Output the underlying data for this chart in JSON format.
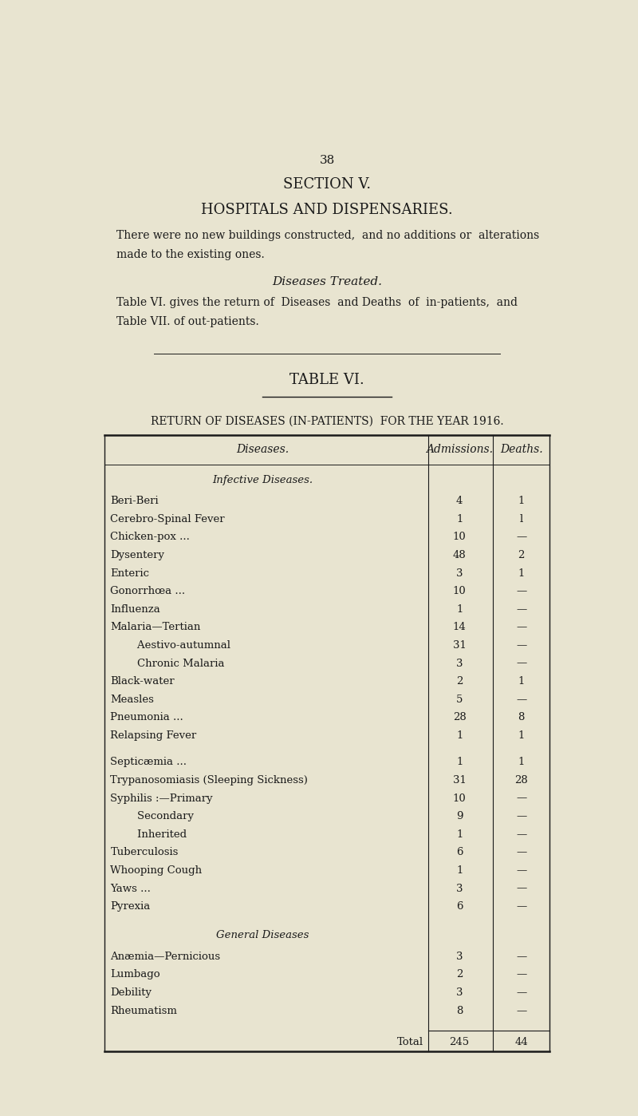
{
  "bg_color": "#e8e4d0",
  "page_number": "38",
  "section_title": "SECTION V.",
  "section_subtitle": "HOSPITALS AND DISPENSARIES.",
  "intro_text": "There were no new buildings constructed,  and no additions or  alterations\nmade to the existing ones.",
  "diseases_treated_heading": "Diseases Treated.",
  "body_text": "Table VI. gives the return of  Diseases  and Deaths  of  in-patients,  and\nTable VII. of out-patients.",
  "table_title": "TABLE VI.",
  "table_subtitle": "RETURN OF DISEASES (IN-PATIENTS)  FOR THE YEAR 1916.",
  "col_headers": [
    "Diseases.",
    "Admissions.",
    "Deaths."
  ],
  "section1_heading": "Infective Diseases.",
  "section1_rows": [
    {
      "disease": "Beri-Beri",
      "admissions": "4",
      "deaths": "1"
    },
    {
      "disease": "Cerebro-Spinal Fever",
      "admissions": "1",
      "deaths": "l"
    },
    {
      "disease": "Chicken-pox ...",
      "admissions": "10",
      "deaths": "—"
    },
    {
      "disease": "Dysentery",
      "admissions": "48",
      "deaths": "2"
    },
    {
      "disease": "Enteric",
      "admissions": "3",
      "deaths": "1"
    },
    {
      "disease": "Gonorrhœa ...",
      "admissions": "10",
      "deaths": "—"
    },
    {
      "disease": "Influenza",
      "admissions": "1",
      "deaths": "—"
    },
    {
      "disease": "Malaria—Tertian",
      "admissions": "14",
      "deaths": "—"
    },
    {
      "disease": "        Aestivo-autumnal",
      "admissions": "31",
      "deaths": "—"
    },
    {
      "disease": "        Chronic Malaria",
      "admissions": "3",
      "deaths": "—"
    },
    {
      "disease": "Black-water",
      "admissions": "2",
      "deaths": "1"
    },
    {
      "disease": "Measles",
      "admissions": "5",
      "deaths": "—"
    },
    {
      "disease": "Pneumonia ...",
      "admissions": "28",
      "deaths": "8"
    },
    {
      "disease": "Relapsing Fever",
      "admissions": "1",
      "deaths": "1"
    }
  ],
  "section1_gap_rows": [
    {
      "disease": "Septicæmia ...",
      "admissions": "1",
      "deaths": "1"
    },
    {
      "disease": "Trypanosomiasis (Sleeping Sickness)",
      "admissions": "31",
      "deaths": "28"
    },
    {
      "disease": "Syphilis :—Primary",
      "admissions": "10",
      "deaths": "—"
    },
    {
      "disease": "        Secondary",
      "admissions": "9",
      "deaths": "—"
    },
    {
      "disease": "        Inherited",
      "admissions": "1",
      "deaths": "—"
    },
    {
      "disease": "Tuberculosis",
      "admissions": "6",
      "deaths": "—"
    },
    {
      "disease": "Whooping Cough",
      "admissions": "1",
      "deaths": "—"
    },
    {
      "disease": "Yaws ...",
      "admissions": "3",
      "deaths": "—"
    },
    {
      "disease": "Pyrexia",
      "admissions": "6",
      "deaths": "—"
    }
  ],
  "section2_heading": "General Diseases",
  "section2_rows": [
    {
      "disease": "Anæmia—Pernicious",
      "admissions": "3",
      "deaths": "—"
    },
    {
      "disease": "Lumbago",
      "admissions": "2",
      "deaths": "—"
    },
    {
      "disease": "Debility",
      "admissions": "3",
      "deaths": "—"
    },
    {
      "disease": "Rheumatism",
      "admissions": "8",
      "deaths": "—"
    }
  ],
  "total_label": "Total",
  "total_admissions": "245",
  "total_deaths": "44"
}
